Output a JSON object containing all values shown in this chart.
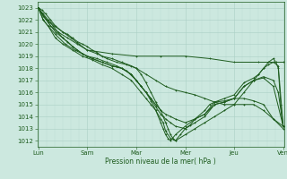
{
  "title": "",
  "xlabel": "Pression niveau de la mer( hPa )",
  "ylabel": "",
  "ylim": [
    1011.5,
    1023.5
  ],
  "yticks": [
    1012,
    1013,
    1014,
    1015,
    1016,
    1017,
    1018,
    1019,
    1020,
    1021,
    1022,
    1023
  ],
  "xlim": [
    -0.02,
    5.02
  ],
  "x_day_positions": [
    0,
    1,
    2,
    3,
    4,
    5
  ],
  "x_day_labels": [
    "Lun",
    "Sam",
    "Mar",
    "Mer",
    "Jeu",
    "Ven"
  ],
  "bg_color": "#cce8df",
  "grid_color_major": "#aacfc5",
  "grid_color_minor": "#bbddd5",
  "line_color": "#1e5c1e",
  "lines": [
    {
      "x": [
        0.0,
        0.08,
        0.17,
        0.25,
        0.33,
        0.5,
        0.67,
        0.83,
        1.0,
        1.5,
        2.0,
        2.5,
        3.0,
        3.5,
        4.0,
        4.5,
        5.0
      ],
      "y": [
        1023.0,
        1022.5,
        1022.0,
        1021.8,
        1021.5,
        1021.0,
        1020.5,
        1020.0,
        1019.5,
        1019.2,
        1019.0,
        1019.0,
        1019.0,
        1018.8,
        1018.5,
        1018.5,
        1018.5
      ]
    },
    {
      "x": [
        0.0,
        0.08,
        0.17,
        0.25,
        0.4,
        0.6,
        0.8,
        1.0,
        1.2,
        1.4,
        1.6,
        1.8,
        2.0,
        2.2,
        2.4,
        2.6,
        2.8,
        3.0,
        3.2,
        3.4,
        3.6,
        3.8,
        4.0,
        4.2,
        4.4,
        4.6,
        4.8,
        5.0
      ],
      "y": [
        1023.0,
        1022.5,
        1022.0,
        1021.5,
        1021.0,
        1020.5,
        1020.0,
        1019.5,
        1019.2,
        1018.8,
        1018.5,
        1018.3,
        1018.0,
        1017.5,
        1017.0,
        1016.5,
        1016.2,
        1016.0,
        1015.8,
        1015.5,
        1015.2,
        1015.0,
        1015.0,
        1015.0,
        1015.0,
        1014.5,
        1013.8,
        1013.2
      ]
    },
    {
      "x": [
        0.0,
        0.1,
        0.2,
        0.35,
        0.5,
        0.7,
        0.9,
        1.1,
        1.3,
        1.5,
        1.7,
        1.9,
        2.0,
        2.1,
        2.2,
        2.3,
        2.4,
        2.5,
        2.6,
        2.7,
        2.8,
        3.0,
        3.2,
        3.4,
        3.6,
        3.8,
        4.0,
        4.2,
        4.4,
        4.6,
        4.8,
        5.0
      ],
      "y": [
        1023.0,
        1022.3,
        1021.8,
        1021.0,
        1020.5,
        1019.8,
        1019.2,
        1018.8,
        1018.5,
        1018.2,
        1018.0,
        1017.5,
        1017.0,
        1016.5,
        1016.0,
        1015.5,
        1015.0,
        1014.5,
        1014.2,
        1014.0,
        1013.8,
        1013.5,
        1013.8,
        1014.2,
        1015.0,
        1015.2,
        1015.5,
        1015.5,
        1015.3,
        1015.0,
        1013.8,
        1013.0
      ]
    },
    {
      "x": [
        0.0,
        0.1,
        0.2,
        0.35,
        0.55,
        0.75,
        1.0,
        1.2,
        1.4,
        1.6,
        1.8,
        2.0,
        2.1,
        2.2,
        2.3,
        2.4,
        2.5,
        2.6,
        2.7,
        2.8,
        3.0,
        3.2,
        3.4,
        3.6,
        3.8,
        4.0,
        4.2,
        4.4,
        4.6,
        4.8,
        5.0
      ],
      "y": [
        1023.0,
        1022.0,
        1021.5,
        1020.8,
        1020.0,
        1019.5,
        1019.0,
        1018.8,
        1018.5,
        1018.2,
        1017.8,
        1017.0,
        1016.5,
        1016.0,
        1015.5,
        1014.8,
        1014.2,
        1013.8,
        1013.5,
        1013.2,
        1013.0,
        1013.5,
        1014.0,
        1015.0,
        1015.2,
        1015.5,
        1016.5,
        1017.0,
        1017.2,
        1016.5,
        1013.2
      ]
    },
    {
      "x": [
        0.0,
        0.1,
        0.2,
        0.35,
        0.5,
        0.7,
        0.9,
        1.1,
        1.3,
        1.5,
        1.7,
        1.9,
        2.1,
        2.2,
        2.3,
        2.4,
        2.5,
        2.55,
        2.6,
        2.7,
        2.8,
        2.9,
        3.0,
        3.1,
        3.2,
        3.4,
        3.5,
        3.6,
        3.8,
        4.0,
        4.2,
        4.4,
        4.6,
        4.8,
        4.9,
        5.0
      ],
      "y": [
        1023.0,
        1022.0,
        1021.5,
        1020.5,
        1020.0,
        1019.5,
        1019.0,
        1018.7,
        1018.3,
        1018.0,
        1017.5,
        1017.0,
        1016.0,
        1015.5,
        1015.0,
        1014.5,
        1013.8,
        1013.5,
        1012.8,
        1012.2,
        1012.0,
        1012.5,
        1013.0,
        1013.3,
        1013.8,
        1014.5,
        1015.0,
        1015.2,
        1015.3,
        1015.5,
        1016.5,
        1017.0,
        1017.3,
        1017.0,
        1016.0,
        1013.2
      ]
    },
    {
      "x": [
        0.0,
        0.1,
        0.2,
        0.3,
        0.4,
        0.5,
        0.6,
        0.7,
        0.8,
        0.9,
        1.0,
        1.1,
        1.3,
        1.5,
        1.7,
        1.9,
        2.0,
        2.1,
        2.2,
        2.3,
        2.4,
        2.5,
        2.55,
        2.6,
        2.65,
        2.7,
        2.8,
        3.0,
        3.2,
        3.4,
        3.6,
        3.8,
        4.0,
        4.2,
        4.4,
        4.5,
        4.6,
        4.7,
        4.8,
        4.9,
        5.0
      ],
      "y": [
        1023.0,
        1022.5,
        1022.0,
        1021.5,
        1021.0,
        1020.5,
        1020.2,
        1019.8,
        1019.5,
        1019.2,
        1019.0,
        1018.8,
        1018.5,
        1018.2,
        1018.0,
        1017.5,
        1017.0,
        1016.5,
        1016.0,
        1015.3,
        1014.5,
        1013.5,
        1013.0,
        1012.5,
        1012.2,
        1012.0,
        1012.5,
        1013.2,
        1013.8,
        1014.2,
        1015.2,
        1015.5,
        1015.8,
        1016.8,
        1017.2,
        1017.5,
        1018.0,
        1018.3,
        1018.5,
        1018.2,
        1013.2
      ]
    },
    {
      "x": [
        0.0,
        0.08,
        0.15,
        0.25,
        0.35,
        0.5,
        0.6,
        0.7,
        0.8,
        0.9,
        1.0,
        1.1,
        1.2,
        1.3,
        1.5,
        1.7,
        1.9,
        2.0,
        2.1,
        2.2,
        2.3,
        2.4,
        2.5,
        2.55,
        2.6,
        2.65,
        2.7,
        2.75,
        2.8,
        3.0,
        3.2,
        3.4,
        3.6,
        3.8,
        4.0,
        4.2,
        4.4,
        4.5,
        4.6,
        4.7,
        4.8,
        4.85,
        4.9,
        4.95,
        5.0
      ],
      "y": [
        1023.0,
        1022.8,
        1022.5,
        1022.0,
        1021.5,
        1021.0,
        1020.8,
        1020.5,
        1020.2,
        1020.0,
        1019.8,
        1019.5,
        1019.3,
        1019.0,
        1018.8,
        1018.5,
        1018.2,
        1018.0,
        1017.5,
        1016.8,
        1016.0,
        1015.2,
        1014.5,
        1014.0,
        1013.5,
        1013.0,
        1012.5,
        1012.2,
        1012.0,
        1012.5,
        1013.0,
        1013.5,
        1014.0,
        1014.5,
        1015.0,
        1016.0,
        1017.0,
        1017.5,
        1018.0,
        1018.5,
        1018.8,
        1018.5,
        1018.0,
        1015.0,
        1013.2
      ]
    }
  ]
}
